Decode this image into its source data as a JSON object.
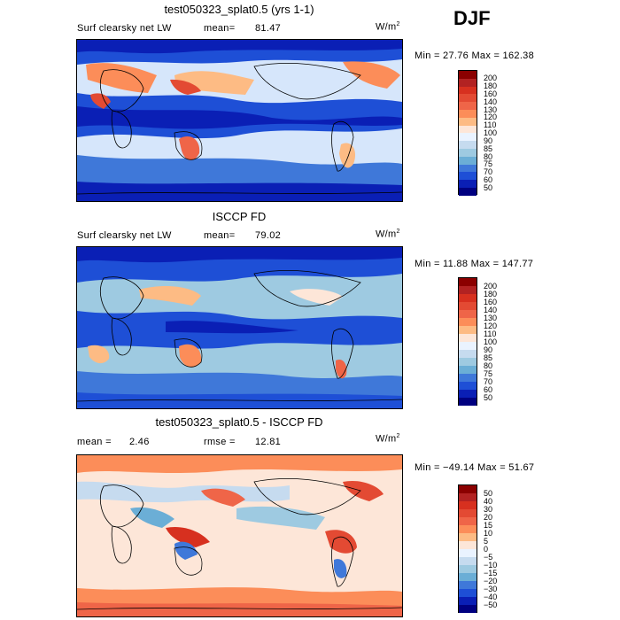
{
  "season": "DJF",
  "panels": [
    {
      "title": "test050323_splat0.5 (yrs 1-1)",
      "left_label": "Surf clearsky net LW",
      "stat_label": "mean=",
      "stat_value": "81.47",
      "unit_base": "W/m",
      "unit_exp": "2",
      "minmax": "Min =  27.76 Max = 162.38",
      "colorbar_labels": [
        "200",
        "180",
        "160",
        "140",
        "130",
        "120",
        "110",
        "100",
        "90",
        "85",
        "80",
        "75",
        "70",
        "60",
        "50"
      ]
    },
    {
      "title": "ISCCP FD",
      "left_label": "Surf clearsky net LW",
      "stat_label": "mean=",
      "stat_value": "79.02",
      "unit_base": "W/m",
      "unit_exp": "2",
      "minmax": "Min =  11.88 Max = 147.77",
      "colorbar_labels": [
        "200",
        "180",
        "160",
        "140",
        "130",
        "120",
        "110",
        "100",
        "90",
        "85",
        "80",
        "75",
        "70",
        "60",
        "50"
      ]
    },
    {
      "title": "test050323_splat0.5 - ISCCP FD",
      "left_label": "mean =",
      "left_value": "2.46",
      "stat_label": "rmse =",
      "stat_value": "12.81",
      "unit_base": "W/m",
      "unit_exp": "2",
      "minmax": "Min = −49.14 Max =  51.67",
      "colorbar_labels": [
        "50",
        "40",
        "30",
        "20",
        "15",
        "10",
        "5",
        "0",
        "−5",
        "−10",
        "−15",
        "−20",
        "−30",
        "−40",
        "−50"
      ]
    }
  ],
  "colors": {
    "abs_scale": [
      "#8b0000",
      "#b22222",
      "#d7301f",
      "#e34a33",
      "#ef6548",
      "#fc8d59",
      "#fdbb84",
      "#fde6d8",
      "#eaf3ff",
      "#c6dbef",
      "#9ecae1",
      "#6baed6",
      "#3f78d9",
      "#1e4fd6",
      "#0a1fb5",
      "#000080"
    ],
    "diff_scale": [
      "#8b0000",
      "#b22222",
      "#d7301f",
      "#e34a33",
      "#ef6548",
      "#fc8d59",
      "#fdbb84",
      "#fde6d8",
      "#eaf3ff",
      "#c6dbef",
      "#9ecae1",
      "#6baed6",
      "#3f78d9",
      "#1e4fd6",
      "#0a1fb5",
      "#000080"
    ]
  }
}
